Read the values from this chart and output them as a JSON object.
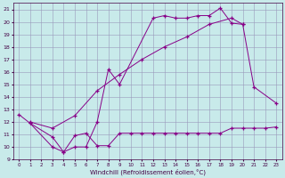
{
  "xlabel": "Windchill (Refroidissement éolien,°C)",
  "bg_color": "#c8eaea",
  "grid_color": "#9999bb",
  "line_color": "#880088",
  "xlim": [
    -0.5,
    23.5
  ],
  "ylim": [
    9,
    21.5
  ],
  "yticks": [
    9,
    10,
    11,
    12,
    13,
    14,
    15,
    16,
    17,
    18,
    19,
    20,
    21
  ],
  "xticks": [
    0,
    1,
    2,
    3,
    4,
    5,
    6,
    7,
    8,
    9,
    10,
    11,
    12,
    13,
    14,
    15,
    16,
    17,
    18,
    19,
    20,
    21,
    22,
    23
  ],
  "curve1_x": [
    0,
    1,
    3,
    4,
    5,
    6,
    7,
    8,
    9,
    12,
    13,
    14,
    15,
    16,
    17,
    18,
    19,
    20
  ],
  "curve1_y": [
    12.6,
    11.9,
    10.8,
    9.6,
    10.0,
    10.0,
    12.0,
    16.2,
    15.0,
    20.3,
    20.5,
    20.3,
    20.3,
    20.5,
    20.5,
    21.1,
    19.9,
    19.8
  ],
  "curve2_x": [
    1,
    3,
    5,
    7,
    9,
    11,
    13,
    15,
    17,
    19,
    20,
    21,
    23
  ],
  "curve2_y": [
    12.0,
    11.5,
    12.5,
    14.5,
    15.8,
    17.0,
    18.0,
    18.8,
    19.8,
    20.3,
    19.8,
    14.8,
    13.5
  ],
  "curve3_x": [
    1,
    3,
    4,
    5,
    6,
    7,
    8,
    9,
    10,
    11,
    12,
    13,
    14,
    15,
    16,
    17,
    18,
    19,
    20,
    21,
    22,
    23
  ],
  "curve3_y": [
    11.9,
    10.0,
    9.6,
    10.9,
    11.1,
    10.1,
    10.1,
    11.1,
    11.1,
    11.1,
    11.1,
    11.1,
    11.1,
    11.1,
    11.1,
    11.1,
    11.1,
    11.5,
    11.5,
    11.5,
    11.5,
    11.6
  ]
}
